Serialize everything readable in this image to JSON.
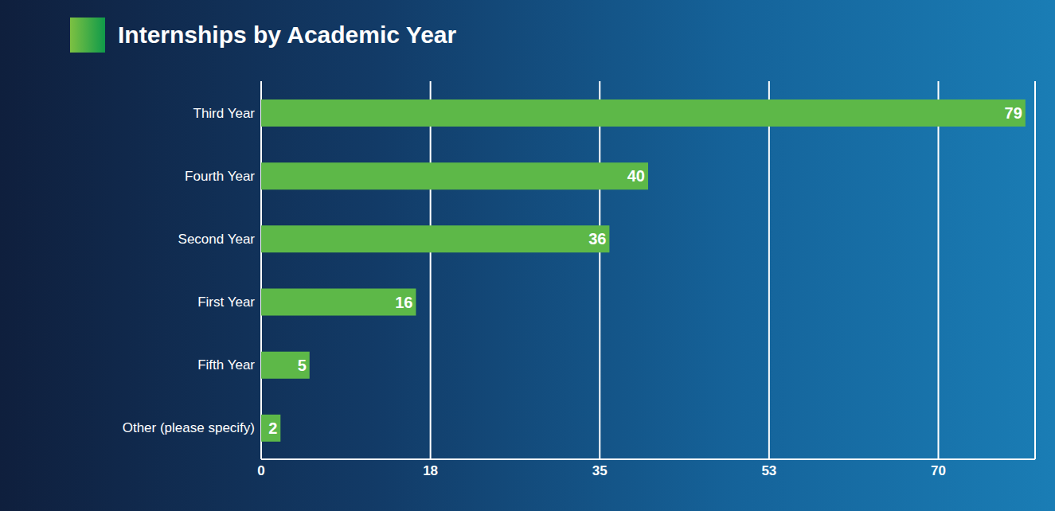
{
  "chart_data": {
    "type": "bar",
    "orientation": "horizontal",
    "title": "Internships by Academic Year",
    "categories": [
      "Third Year",
      "Fourth Year",
      "Second Year",
      "First Year",
      "Fifth Year",
      "Other (please specify)"
    ],
    "values": [
      79,
      40,
      36,
      16,
      5,
      2
    ],
    "color": "#5db848",
    "xlim": [
      0,
      80
    ],
    "xticks": [
      0,
      {
        "value": 17.5,
        "label": "18"
      },
      35,
      {
        "value": 52.5,
        "label": "53"
      },
      70
    ],
    "grid": true,
    "data_labels": true
  }
}
